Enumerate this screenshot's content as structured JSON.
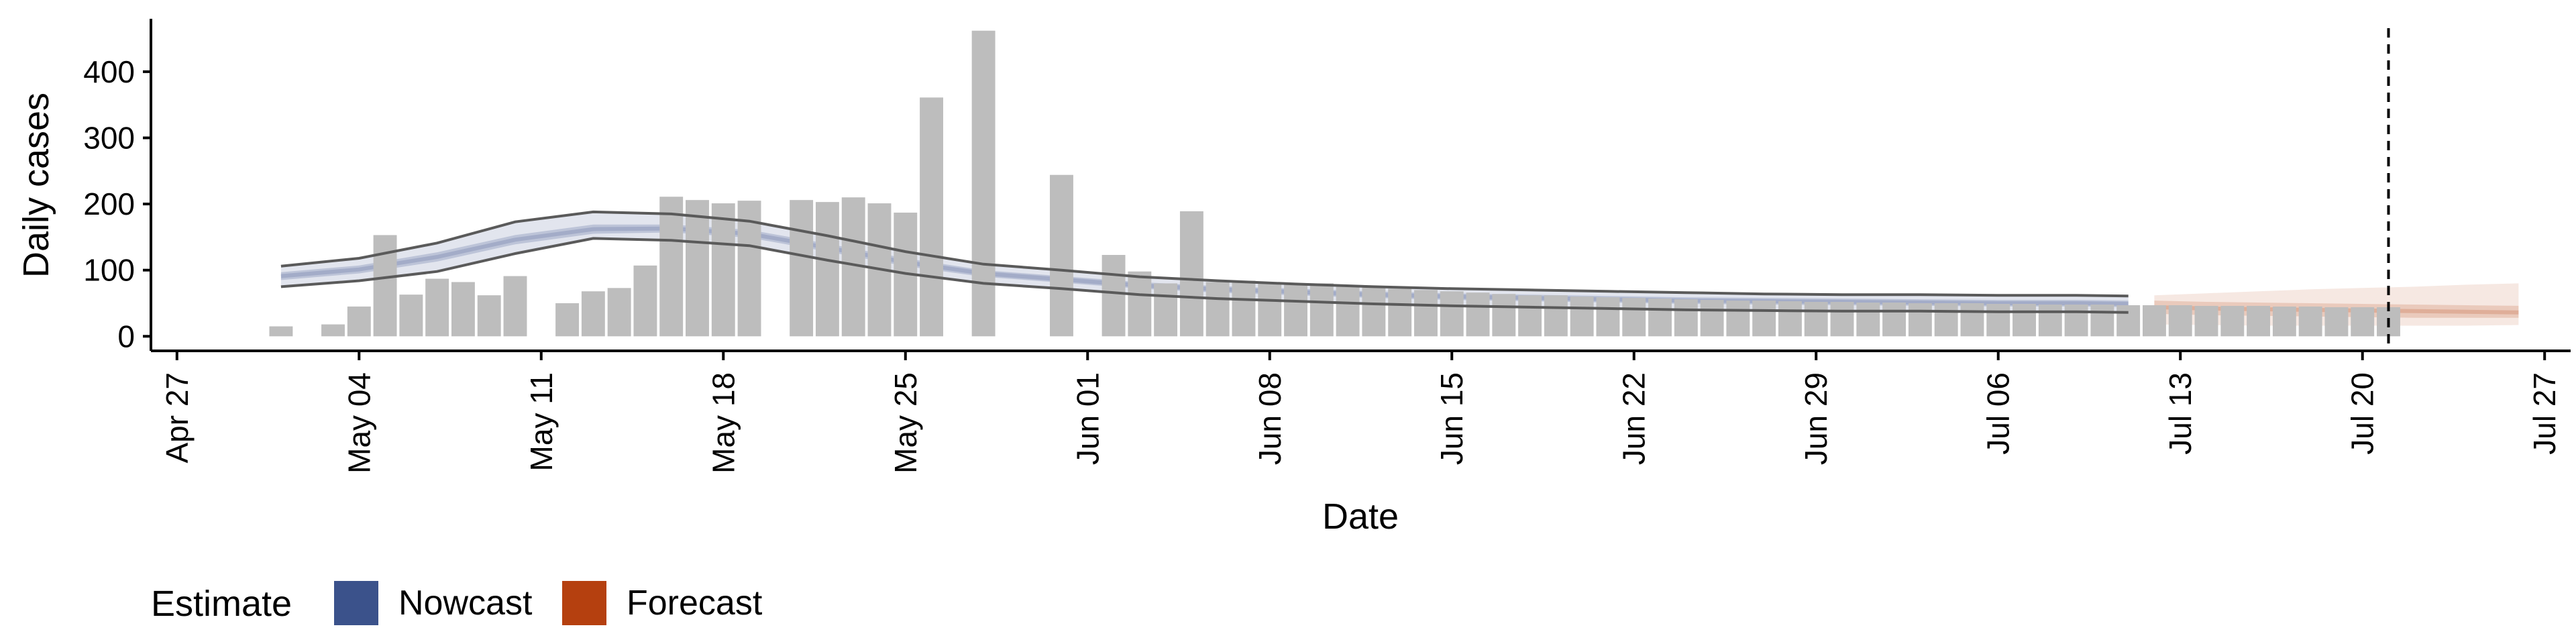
{
  "chart_data": {
    "type": "bar",
    "xlabel": "Date",
    "ylabel": "Daily cases",
    "x_range": [
      "2020-04-26",
      "2020-07-28"
    ],
    "ylim": [
      -22,
      480
    ],
    "x_ticks": [
      {
        "date": "2020-04-27",
        "label": "Apr 27"
      },
      {
        "date": "2020-05-04",
        "label": "May 04"
      },
      {
        "date": "2020-05-11",
        "label": "May 11"
      },
      {
        "date": "2020-05-18",
        "label": "May 18"
      },
      {
        "date": "2020-05-25",
        "label": "May 25"
      },
      {
        "date": "2020-06-01",
        "label": "Jun 01"
      },
      {
        "date": "2020-06-08",
        "label": "Jun 08"
      },
      {
        "date": "2020-06-15",
        "label": "Jun 15"
      },
      {
        "date": "2020-06-22",
        "label": "Jun 22"
      },
      {
        "date": "2020-06-29",
        "label": "Jun 29"
      },
      {
        "date": "2020-07-06",
        "label": "Jul 06"
      },
      {
        "date": "2020-07-13",
        "label": "Jul 13"
      },
      {
        "date": "2020-07-20",
        "label": "Jul 20"
      },
      {
        "date": "2020-07-27",
        "label": "Jul 27"
      }
    ],
    "y_ticks": [
      0,
      100,
      200,
      300,
      400
    ],
    "reported_cases": {
      "dates": [
        "2020-05-01",
        "2020-05-02",
        "2020-05-03",
        "2020-05-04",
        "2020-05-05",
        "2020-05-06",
        "2020-05-07",
        "2020-05-08",
        "2020-05-09",
        "2020-05-10",
        "2020-05-11",
        "2020-05-12",
        "2020-05-13",
        "2020-05-14",
        "2020-05-15",
        "2020-05-16",
        "2020-05-17",
        "2020-05-18",
        "2020-05-19",
        "2020-05-20",
        "2020-05-21",
        "2020-05-22",
        "2020-05-23",
        "2020-05-24",
        "2020-05-25",
        "2020-05-26",
        "2020-05-27",
        "2020-05-28",
        "2020-05-29",
        "2020-05-30",
        "2020-05-31",
        "2020-06-01",
        "2020-06-02",
        "2020-06-03",
        "2020-06-04",
        "2020-06-05",
        "2020-06-06",
        "2020-06-07",
        "2020-06-08",
        "2020-06-09",
        "2020-06-10",
        "2020-06-11",
        "2020-06-12",
        "2020-06-13",
        "2020-06-14",
        "2020-06-15",
        "2020-06-16",
        "2020-06-17",
        "2020-06-18",
        "2020-06-19",
        "2020-06-20",
        "2020-06-21",
        "2020-06-22",
        "2020-06-23",
        "2020-06-24",
        "2020-06-25",
        "2020-06-26",
        "2020-06-27",
        "2020-06-28",
        "2020-06-29",
        "2020-06-30",
        "2020-07-01",
        "2020-07-02",
        "2020-07-03",
        "2020-07-04",
        "2020-07-05",
        "2020-07-06",
        "2020-07-07",
        "2020-07-08",
        "2020-07-09",
        "2020-07-10",
        "2020-07-11",
        "2020-07-12",
        "2020-07-13",
        "2020-07-14",
        "2020-07-15",
        "2020-07-16",
        "2020-07-17",
        "2020-07-18",
        "2020-07-19",
        "2020-07-20",
        "2020-07-21"
      ],
      "values": [
        15,
        0,
        18,
        45,
        153,
        63,
        87,
        82,
        62,
        91,
        0,
        50,
        68,
        73,
        107,
        211,
        206,
        201,
        205,
        0,
        206,
        203,
        210,
        201,
        187,
        361,
        0,
        462,
        0,
        0,
        244,
        0,
        123,
        98,
        80,
        189,
        82,
        84,
        80,
        79,
        80,
        76,
        74,
        72,
        70,
        68,
        66,
        64,
        62,
        62,
        60,
        59,
        58,
        57,
        56,
        55,
        54,
        54,
        53,
        52,
        52,
        51,
        51,
        50,
        50,
        50,
        49,
        49,
        48,
        48,
        48,
        47,
        47,
        47,
        46,
        46,
        46,
        45,
        45,
        44,
        44,
        44
      ]
    },
    "series": [
      {
        "name": "Nowcast",
        "color": "#3b528b",
        "dates": [
          "2020-05-01",
          "2020-05-04",
          "2020-05-07",
          "2020-05-10",
          "2020-05-13",
          "2020-05-16",
          "2020-05-19",
          "2020-05-22",
          "2020-05-25",
          "2020-05-28",
          "2020-05-31",
          "2020-06-03",
          "2020-06-06",
          "2020-06-09",
          "2020-06-12",
          "2020-06-15",
          "2020-06-18",
          "2020-06-21",
          "2020-06-24",
          "2020-06-27",
          "2020-06-30",
          "2020-07-03",
          "2020-07-06",
          "2020-07-09",
          "2020-07-11"
        ],
        "median": [
          91,
          101,
          120,
          146,
          162,
          163,
          155,
          134,
          112,
          95,
          86,
          77,
          71,
          67,
          63,
          60,
          58,
          56,
          54,
          53,
          52,
          51,
          50,
          50,
          49
        ],
        "lower_50": [
          85,
          95,
          113,
          139,
          155,
          157,
          149,
          128,
          106,
          90,
          81,
          72,
          66,
          62,
          58,
          55,
          53,
          51,
          49,
          48,
          47,
          46,
          45,
          45,
          44
        ],
        "upper_50": [
          97,
          107,
          127,
          153,
          169,
          169,
          161,
          140,
          118,
          100,
          91,
          82,
          76,
          72,
          68,
          65,
          63,
          61,
          59,
          58,
          57,
          56,
          55,
          55,
          54
        ],
        "lower_90": [
          75,
          84,
          98,
          125,
          148,
          145,
          137,
          115,
          95,
          80,
          72,
          63,
          57,
          53,
          49,
          46,
          44,
          42,
          40,
          39,
          38,
          38,
          37,
          37,
          36
        ],
        "upper_90": [
          106,
          118,
          141,
          173,
          188,
          185,
          174,
          152,
          128,
          109,
          100,
          90,
          84,
          79,
          75,
          72,
          70,
          68,
          66,
          64,
          63,
          63,
          62,
          62,
          61
        ]
      },
      {
        "name": "Forecast",
        "color": "#b5400f",
        "dates": [
          "2020-07-12",
          "2020-07-14",
          "2020-07-16",
          "2020-07-18",
          "2020-07-20",
          "2020-07-22",
          "2020-07-24",
          "2020-07-26"
        ],
        "median": [
          44,
          42,
          41,
          40,
          39,
          38,
          37,
          36
        ],
        "lower_50": [
          34,
          32,
          31,
          30,
          29,
          28,
          28,
          28
        ],
        "upper_50": [
          54,
          52,
          51,
          50,
          49,
          48,
          47,
          46
        ],
        "lower_90": [
          18,
          17,
          16,
          16,
          16,
          16,
          16,
          17
        ],
        "upper_90": [
          62,
          65,
          68,
          71,
          73,
          75,
          78,
          80
        ]
      }
    ],
    "vline_date": "2020-07-21",
    "legend": {
      "title": "Estimate",
      "placement": "bottom-left",
      "items": [
        {
          "label": "Nowcast",
          "color": "#3b528b"
        },
        {
          "label": "Forecast",
          "color": "#b5400f"
        }
      ]
    }
  }
}
